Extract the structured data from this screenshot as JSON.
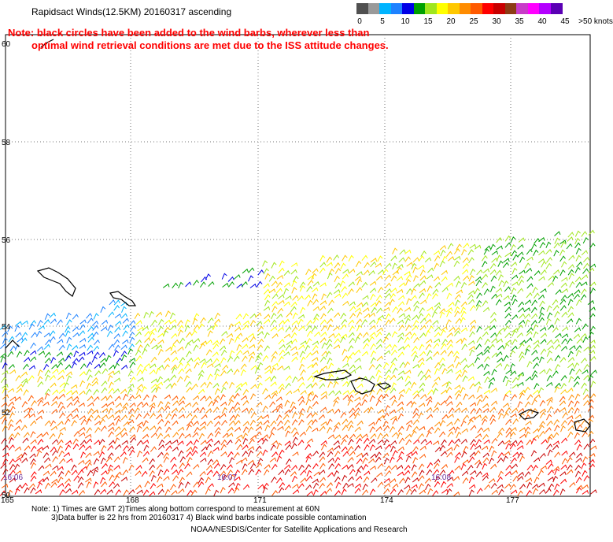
{
  "title": "Rapidsact Winds(12.5KM) 20160317 ascending",
  "note_line1": "Note: black circles have been added to the wind barbs, wherever less than",
  "note_line2": "optimal wind retrieval conditions are met due to the ISS attitude changes.",
  "colorbar": {
    "swatches": [
      "#505050",
      "#9a9a9a",
      "#00b4ff",
      "#1e82ff",
      "#0000e6",
      "#00a000",
      "#a0e61e",
      "#ffff00",
      "#ffc800",
      "#ff8c00",
      "#ff5a00",
      "#ff0000",
      "#c80000",
      "#8c3c14",
      "#c83cc8",
      "#ff00ff",
      "#b400ff",
      "#5a00b4"
    ],
    "labels": [
      "0",
      "5",
      "10",
      "15",
      "20",
      "25",
      "30",
      "35",
      "40",
      "45",
      ">50 knots"
    ]
  },
  "map": {
    "lat_labels": [
      "60",
      "58",
      "56",
      "54",
      "52",
      "50"
    ],
    "lon_labels": [
      "165",
      "168",
      "171",
      "174",
      "177"
    ],
    "time_labels": [
      "16:06",
      "16:07",
      "16:08"
    ]
  },
  "notes": {
    "line1": "Note: 1) Times are GMT 2)Times along bottom correspond to measurement at 60N",
    "line2": "3)Data buffer is 22 hrs from 20160317 4) Black wind barbs indicate possible contamination"
  },
  "credit": "NOAA/NESDIS/Center for Satellite Applications and Research"
}
